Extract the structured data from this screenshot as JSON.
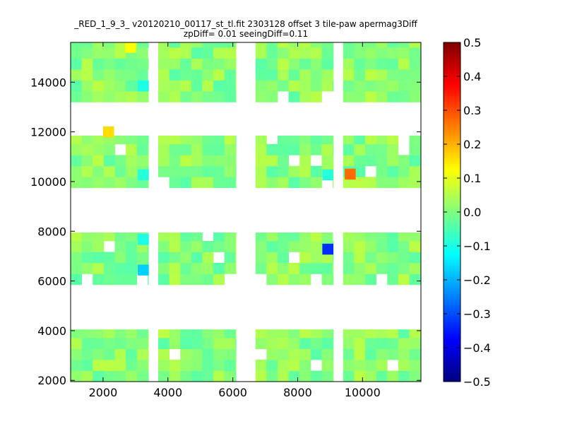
{
  "chart_data": {
    "type": "heatmap",
    "title_lines": [
      "_RED_1_9_3_ v20120210_00117_st_tl.fit 2303128 offset 3 tile-paw apermag3Diff",
      "zpDiff= 0.01 seeingDiff=0.11"
    ],
    "xlabel": "",
    "ylabel": "",
    "xlim": [
      1000,
      11800
    ],
    "ylim": [
      1950,
      15600
    ],
    "xticks": [
      2000,
      4000,
      6000,
      8000,
      10000
    ],
    "yticks": [
      2000,
      4000,
      6000,
      8000,
      10000,
      12000,
      14000
    ],
    "colorbar": {
      "colormap": "jet",
      "range": [
        -0.5,
        0.5
      ],
      "ticks": [
        "0.5",
        "0.4",
        "0.3",
        "0.2",
        "0.1",
        "0.0",
        "−0.1",
        "−0.2",
        "−0.3",
        "−0.4",
        "−0.5"
      ],
      "tick_values": [
        0.5,
        0.4,
        0.3,
        0.2,
        0.1,
        0.0,
        -0.1,
        -0.2,
        -0.3,
        -0.4,
        -0.5
      ]
    },
    "cell_size": [
      340,
      440
    ],
    "detector_columns": [
      [
        1000,
        3400
      ],
      [
        3700,
        6100
      ],
      [
        6700,
        9100
      ],
      [
        9400,
        11800
      ]
    ],
    "detector_rows": [
      [
        1950,
        4050
      ],
      [
        5850,
        7950
      ],
      [
        9750,
        11850
      ],
      [
        13200,
        15600
      ]
    ],
    "base_value_range": [
      -0.04,
      0.06
    ],
    "outliers": [
      {
        "x": 2170,
        "y": 12000,
        "value": 0.16
      },
      {
        "x": 9620,
        "y": 10300,
        "value": 0.27
      },
      {
        "x": 8930,
        "y": 7280,
        "value": -0.33
      },
      {
        "x": 3240,
        "y": 6440,
        "value": -0.17
      },
      {
        "x": 2850,
        "y": 15400,
        "value": 0.12
      },
      {
        "x": 3240,
        "y": 13850,
        "value": -0.1
      },
      {
        "x": 3240,
        "y": 10270,
        "value": -0.09
      },
      {
        "x": 8930,
        "y": 10270,
        "value": -0.09
      },
      {
        "x": 3240,
        "y": 7670,
        "value": -0.1
      }
    ]
  }
}
